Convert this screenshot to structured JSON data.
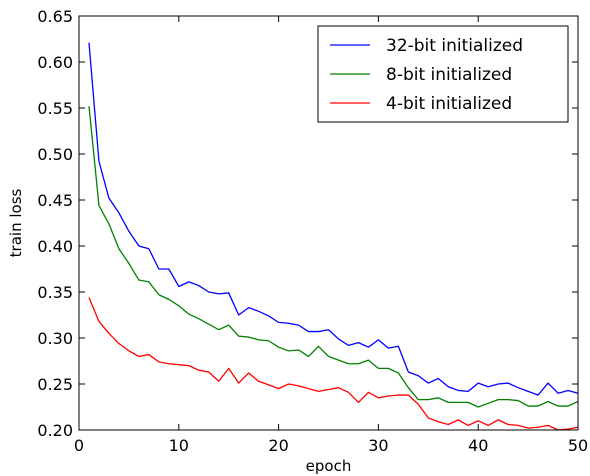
{
  "chart_data": {
    "type": "line",
    "xlabel": "epoch",
    "ylabel": "train loss",
    "xlim": [
      0,
      50
    ],
    "ylim": [
      0.2,
      0.65
    ],
    "x_ticks": [
      0,
      10,
      20,
      30,
      40,
      50
    ],
    "y_ticks": [
      0.2,
      0.25,
      0.3,
      0.35,
      0.4,
      0.45,
      0.5,
      0.55,
      0.6,
      0.65
    ],
    "x_tick_labels": [
      "0",
      "10",
      "20",
      "30",
      "40",
      "50"
    ],
    "y_tick_labels": [
      "0.20",
      "0.25",
      "0.30",
      "0.35",
      "0.40",
      "0.45",
      "0.50",
      "0.55",
      "0.60",
      "0.65"
    ],
    "legend_position": "top-right",
    "grid": false,
    "x": [
      1,
      2,
      3,
      4,
      5,
      6,
      7,
      8,
      9,
      10,
      11,
      12,
      13,
      14,
      15,
      16,
      17,
      18,
      19,
      20,
      21,
      22,
      23,
      24,
      25,
      26,
      27,
      28,
      29,
      30,
      31,
      32,
      33,
      34,
      35,
      36,
      37,
      38,
      39,
      40,
      41,
      42,
      43,
      44,
      45,
      46,
      47,
      48,
      49,
      50
    ],
    "series": [
      {
        "name": "32-bit initialized",
        "color": "#0000ff",
        "values": [
          0.621,
          0.492,
          0.452,
          0.436,
          0.416,
          0.4,
          0.397,
          0.375,
          0.375,
          0.356,
          0.361,
          0.357,
          0.35,
          0.348,
          0.349,
          0.325,
          0.333,
          0.329,
          0.324,
          0.317,
          0.316,
          0.314,
          0.307,
          0.307,
          0.309,
          0.299,
          0.292,
          0.295,
          0.29,
          0.298,
          0.289,
          0.291,
          0.263,
          0.259,
          0.251,
          0.256,
          0.247,
          0.243,
          0.242,
          0.251,
          0.247,
          0.25,
          0.251,
          0.246,
          0.242,
          0.238,
          0.251,
          0.24,
          0.243,
          0.24
        ]
      },
      {
        "name": "8-bit initialized",
        "color": "#008000",
        "values": [
          0.552,
          0.444,
          0.424,
          0.397,
          0.381,
          0.363,
          0.361,
          0.347,
          0.342,
          0.335,
          0.326,
          0.321,
          0.315,
          0.309,
          0.314,
          0.302,
          0.301,
          0.298,
          0.297,
          0.29,
          0.286,
          0.287,
          0.28,
          0.291,
          0.28,
          0.276,
          0.272,
          0.272,
          0.276,
          0.267,
          0.267,
          0.262,
          0.246,
          0.233,
          0.233,
          0.235,
          0.23,
          0.23,
          0.23,
          0.225,
          0.229,
          0.233,
          0.233,
          0.232,
          0.226,
          0.226,
          0.231,
          0.226,
          0.226,
          0.231
        ]
      },
      {
        "name": "4-bit initialized",
        "color": "#ff0000",
        "values": [
          0.344,
          0.318,
          0.305,
          0.294,
          0.286,
          0.28,
          0.282,
          0.274,
          0.272,
          0.271,
          0.27,
          0.265,
          0.263,
          0.253,
          0.267,
          0.251,
          0.262,
          0.253,
          0.249,
          0.245,
          0.25,
          0.248,
          0.245,
          0.242,
          0.244,
          0.246,
          0.241,
          0.23,
          0.241,
          0.235,
          0.237,
          0.238,
          0.238,
          0.228,
          0.213,
          0.209,
          0.206,
          0.211,
          0.205,
          0.21,
          0.205,
          0.211,
          0.206,
          0.205,
          0.202,
          0.203,
          0.205,
          0.2,
          0.201,
          0.203
        ]
      }
    ]
  }
}
